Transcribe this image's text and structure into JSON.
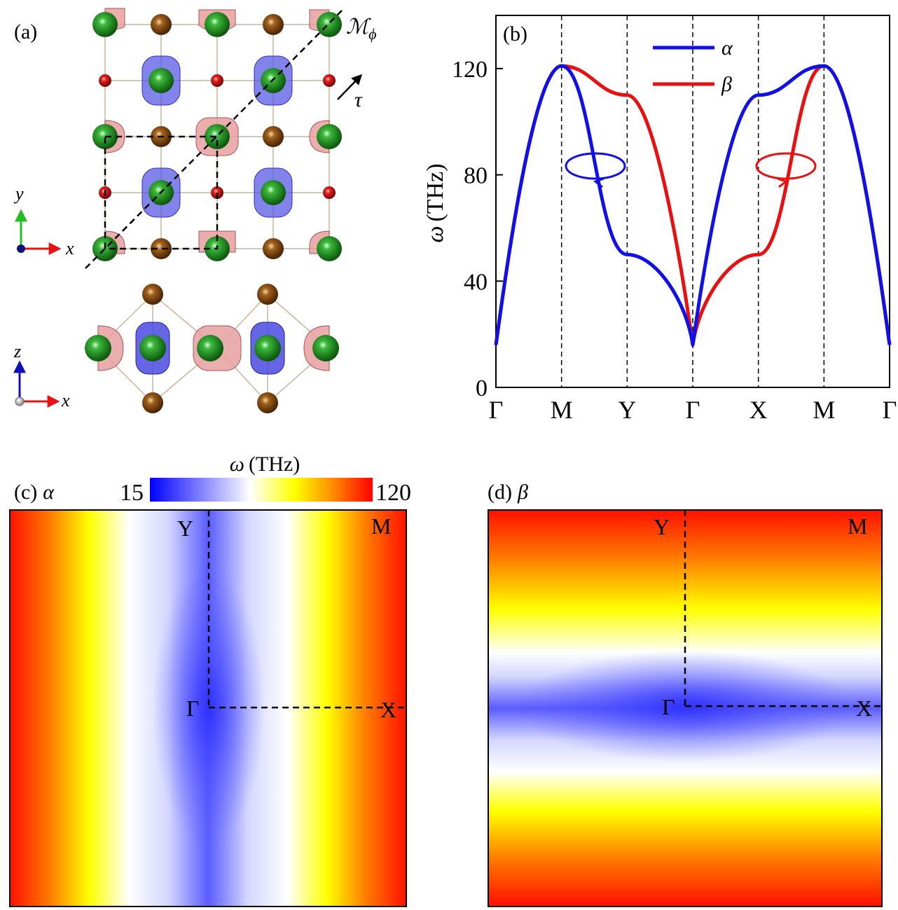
{
  "panel_a": {
    "label": "(a)",
    "mirror_label": "ℳ",
    "mirror_sub": "ϕ",
    "translation_label": "τ",
    "axes_top": {
      "vertical": "y",
      "horizontal": "x"
    },
    "axes_bottom": {
      "vertical": "z",
      "horizontal": "x"
    }
  },
  "panel_b": {
    "label": "(b)",
    "ylabel_symbol": "ω",
    "ylabel_unit": "(THz)",
    "legend": [
      "α",
      "β"
    ]
  },
  "panel_c": {
    "label": "(c)",
    "mode": "α",
    "points": {
      "Y": "Y",
      "M": "M",
      "G": "Γ",
      "X": "X"
    }
  },
  "panel_d": {
    "label": "(d)",
    "mode": "β",
    "points": {
      "Y": "Y",
      "M": "M",
      "G": "Γ",
      "X": "X"
    }
  },
  "colorbar": {
    "title_symbol": "ω",
    "title_unit": "(THz)",
    "min_label": "15",
    "max_label": "120"
  },
  "colors": {
    "alpha": "#1010e8",
    "beta": "#e81010",
    "green_atom": "#1a8a1a",
    "brown_atom": "#8a4a10",
    "red_atom": "#dd1111"
  },
  "chart_data": {
    "type": "line",
    "title": "",
    "xlabel": "",
    "ylabel": "ω (THz)",
    "ylim": [
      0,
      140
    ],
    "yticks": [
      0,
      40,
      80,
      120
    ],
    "xticks": [
      "Γ",
      "M",
      "Y",
      "Γ",
      "X",
      "M",
      "Γ"
    ],
    "x": [
      0,
      1,
      2,
      3,
      4,
      5,
      6
    ],
    "series": [
      {
        "name": "α",
        "color": "#1010e8",
        "values": [
          16,
          121,
          50,
          16,
          110,
          121,
          16
        ]
      },
      {
        "name": "β",
        "color": "#e81010",
        "values": [
          16,
          121,
          110,
          16,
          50,
          121,
          16
        ]
      }
    ]
  }
}
